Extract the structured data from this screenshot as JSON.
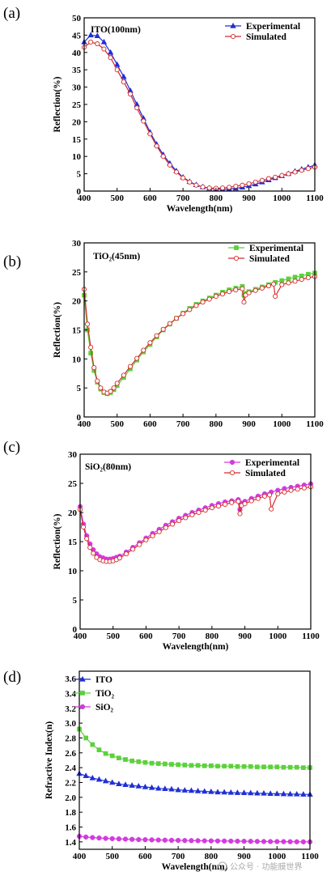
{
  "watermark": "公众号 · 功能膜世界",
  "colors": {
    "ito": "#1f2fd6",
    "tio2": "#5cd13c",
    "sio2": "#d33be0",
    "simulated": "#d62a2a"
  },
  "chart_data": [
    {
      "panel_label": "(a)",
      "type": "line",
      "title": "ITO(100nm)",
      "xlabel": "Wavelength(nm)",
      "ylabel": "Reflection(%)",
      "xlim": [
        400,
        1100
      ],
      "ylim": [
        0,
        50
      ],
      "xticks": [
        400,
        500,
        600,
        700,
        800,
        900,
        1000,
        1100
      ],
      "yticks": [
        0,
        5,
        10,
        15,
        20,
        25,
        30,
        35,
        40,
        45,
        50
      ],
      "legend_position": "top-right",
      "series": [
        {
          "name": "Experimental",
          "marker": "triangle-filled",
          "color": "#1f2fd6",
          "x": [
            400,
            420,
            440,
            460,
            480,
            500,
            520,
            540,
            560,
            580,
            600,
            620,
            640,
            660,
            680,
            700,
            720,
            740,
            760,
            780,
            800,
            820,
            840,
            860,
            880,
            900,
            920,
            940,
            960,
            980,
            1000,
            1020,
            1040,
            1060,
            1080,
            1100
          ],
          "y": [
            43,
            45,
            44.8,
            43,
            40,
            36.5,
            33,
            29,
            25,
            21,
            17,
            13.5,
            10.5,
            8,
            5.8,
            4,
            2.7,
            1.8,
            1.2,
            0.8,
            0.6,
            0.5,
            0.6,
            0.8,
            1.1,
            1.5,
            2.0,
            2.6,
            3.2,
            3.8,
            4.4,
            5.0,
            5.7,
            6.3,
            6.9,
            7.5
          ]
        },
        {
          "name": "Simulated",
          "marker": "circle-open",
          "color": "#d62a2a",
          "x": [
            400,
            420,
            440,
            460,
            480,
            500,
            520,
            540,
            560,
            580,
            600,
            620,
            640,
            660,
            680,
            700,
            720,
            740,
            760,
            780,
            800,
            820,
            840,
            860,
            880,
            900,
            920,
            940,
            960,
            980,
            1000,
            1020,
            1040,
            1060,
            1080,
            1100
          ],
          "y": [
            41.5,
            43,
            42.5,
            41,
            38.5,
            35,
            31.5,
            28,
            24,
            20.2,
            16.5,
            13,
            10,
            7.5,
            5.5,
            3.8,
            2.6,
            1.7,
            1.2,
            0.9,
            0.8,
            0.9,
            1.1,
            1.4,
            1.7,
            2.1,
            2.6,
            3.1,
            3.6,
            4.0,
            4.5,
            5.0,
            5.5,
            6.0,
            6.5,
            6.9
          ]
        }
      ]
    },
    {
      "panel_label": "(b)",
      "type": "line",
      "title": "TiO₂(45nm)",
      "xlabel": "",
      "ylabel": "Reflection(%)",
      "xlim": [
        400,
        1100
      ],
      "ylim": [
        0,
        30
      ],
      "xticks": [
        400,
        500,
        600,
        700,
        800,
        900,
        1000,
        1100
      ],
      "yticks": [
        0,
        5,
        10,
        15,
        20,
        25,
        30
      ],
      "legend_position": "top-right",
      "series": [
        {
          "name": "Experimental",
          "marker": "square-filled",
          "color": "#5cd13c",
          "x": [
            400,
            410,
            420,
            430,
            440,
            450,
            460,
            470,
            480,
            490,
            500,
            520,
            540,
            560,
            580,
            600,
            620,
            640,
            660,
            680,
            700,
            720,
            740,
            760,
            780,
            800,
            820,
            840,
            860,
            880,
            885,
            890,
            900,
            920,
            940,
            960,
            980,
            1000,
            1020,
            1040,
            1060,
            1080,
            1100
          ],
          "y": [
            21,
            15,
            11,
            8,
            6,
            4.8,
            4.2,
            4.0,
            4.2,
            4.7,
            5.4,
            6.8,
            8.3,
            9.8,
            11.2,
            12.5,
            13.8,
            15.0,
            16.0,
            17.0,
            17.9,
            18.7,
            19.4,
            20.0,
            20.5,
            21.0,
            21.5,
            21.9,
            22.2,
            22.5,
            21.0,
            21.3,
            21.6,
            22.0,
            22.4,
            22.8,
            23.2,
            23.5,
            23.8,
            24.1,
            24.3,
            24.6,
            24.8
          ]
        },
        {
          "name": "Simulated",
          "marker": "circle-open",
          "color": "#d62a2a",
          "x": [
            400,
            410,
            420,
            430,
            440,
            450,
            460,
            470,
            480,
            490,
            500,
            520,
            540,
            560,
            580,
            600,
            620,
            640,
            660,
            680,
            700,
            720,
            740,
            760,
            780,
            800,
            820,
            840,
            860,
            880,
            885,
            890,
            900,
            920,
            940,
            960,
            975,
            980,
            1000,
            1020,
            1040,
            1060,
            1080,
            1100
          ],
          "y": [
            22,
            16,
            12,
            8.5,
            6.2,
            5.0,
            4.3,
            4.1,
            4.4,
            5.0,
            5.8,
            7.2,
            8.7,
            10.1,
            11.5,
            12.8,
            14.0,
            15.1,
            16.1,
            17.0,
            17.8,
            18.5,
            19.2,
            19.8,
            20.3,
            20.8,
            21.2,
            21.6,
            21.9,
            22.1,
            19.8,
            21.0,
            21.4,
            21.8,
            22.2,
            22.6,
            22.9,
            20.8,
            22.8,
            23.1,
            23.4,
            23.7,
            24.0,
            24.2
          ]
        }
      ]
    },
    {
      "panel_label": "(c)",
      "type": "line",
      "title": "SiO₂(80nm)",
      "xlabel": "Wavelength(nm)",
      "ylabel": "Reflection(%)",
      "xlim": [
        400,
        1100
      ],
      "ylim": [
        0,
        30
      ],
      "xticks": [
        400,
        500,
        600,
        700,
        800,
        900,
        1000,
        1100
      ],
      "yticks": [
        0,
        5,
        10,
        15,
        20,
        25,
        30
      ],
      "legend_position": "top-right",
      "series": [
        {
          "name": "Experimental",
          "marker": "circle-filled",
          "color": "#d33be0",
          "x": [
            400,
            410,
            420,
            430,
            440,
            450,
            460,
            470,
            480,
            490,
            500,
            510,
            520,
            540,
            560,
            580,
            600,
            620,
            640,
            660,
            680,
            700,
            720,
            740,
            760,
            780,
            800,
            820,
            840,
            860,
            880,
            885,
            890,
            900,
            920,
            940,
            960,
            980,
            1000,
            1020,
            1040,
            1060,
            1080,
            1100
          ],
          "y": [
            21,
            18,
            16,
            14.6,
            13.6,
            12.9,
            12.4,
            12.2,
            12.0,
            12.0,
            12.1,
            12.3,
            12.5,
            13.2,
            14.0,
            14.8,
            15.6,
            16.4,
            17.1,
            17.8,
            18.4,
            19.0,
            19.5,
            20.0,
            20.4,
            20.8,
            21.2,
            21.5,
            21.8,
            22.0,
            22.2,
            20.5,
            21.6,
            21.9,
            22.4,
            22.8,
            23.2,
            23.5,
            23.8,
            24.1,
            24.3,
            24.5,
            24.7,
            24.9
          ]
        },
        {
          "name": "Simulated",
          "marker": "circle-open",
          "color": "#d62a2a",
          "x": [
            400,
            410,
            420,
            430,
            440,
            450,
            460,
            470,
            480,
            490,
            500,
            510,
            520,
            540,
            560,
            580,
            600,
            620,
            640,
            660,
            680,
            700,
            720,
            740,
            760,
            780,
            800,
            820,
            840,
            860,
            880,
            885,
            890,
            900,
            920,
            940,
            960,
            975,
            980,
            1000,
            1020,
            1040,
            1060,
            1080,
            1100
          ],
          "y": [
            20.5,
            17.5,
            15.5,
            14.0,
            13.0,
            12.3,
            11.9,
            11.7,
            11.6,
            11.6,
            11.7,
            11.9,
            12.2,
            12.9,
            13.7,
            14.5,
            15.3,
            16.0,
            16.7,
            17.4,
            18.0,
            18.6,
            19.1,
            19.6,
            20.0,
            20.4,
            20.8,
            21.1,
            21.4,
            21.7,
            21.9,
            19.8,
            21.2,
            21.5,
            22.0,
            22.4,
            22.8,
            23.0,
            20.6,
            23.2,
            23.5,
            23.8,
            24.0,
            24.2,
            24.4
          ]
        }
      ]
    },
    {
      "panel_label": "(d)",
      "type": "line",
      "title": "",
      "xlabel": "Wavelength(nm)",
      "ylabel": "Refractive Index(n)",
      "xlim": [
        400,
        1100
      ],
      "ylim": [
        1.3,
        3.7
      ],
      "xticks": [
        400,
        500,
        600,
        700,
        800,
        900,
        1000,
        1100
      ],
      "yticks": [
        1.4,
        1.6,
        1.8,
        2.0,
        2.2,
        2.4,
        2.6,
        2.8,
        3.0,
        3.2,
        3.4,
        3.6
      ],
      "legend_position": "top-left",
      "series": [
        {
          "name": "ITO",
          "marker": "triangle-filled",
          "color": "#1f2fd6",
          "x": [
            400,
            420,
            440,
            460,
            480,
            500,
            520,
            540,
            560,
            580,
            600,
            620,
            640,
            660,
            680,
            700,
            720,
            740,
            760,
            780,
            800,
            820,
            840,
            860,
            880,
            900,
            920,
            940,
            960,
            980,
            1000,
            1020,
            1040,
            1060,
            1080,
            1100
          ],
          "y": [
            2.32,
            2.29,
            2.26,
            2.24,
            2.22,
            2.2,
            2.18,
            2.17,
            2.16,
            2.15,
            2.14,
            2.13,
            2.12,
            2.115,
            2.11,
            2.1,
            2.095,
            2.09,
            2.085,
            2.08,
            2.075,
            2.07,
            2.068,
            2.065,
            2.062,
            2.06,
            2.058,
            2.055,
            2.053,
            2.05,
            2.048,
            2.046,
            2.044,
            2.042,
            2.04,
            2.04
          ]
        },
        {
          "name": "TiO₂",
          "marker": "square-filled",
          "color": "#5cd13c",
          "x": [
            400,
            420,
            440,
            460,
            480,
            500,
            520,
            540,
            560,
            580,
            600,
            620,
            640,
            660,
            680,
            700,
            720,
            740,
            760,
            780,
            800,
            820,
            840,
            860,
            880,
            900,
            920,
            940,
            960,
            980,
            1000,
            1020,
            1040,
            1060,
            1080,
            1100
          ],
          "y": [
            2.92,
            2.8,
            2.71,
            2.64,
            2.59,
            2.56,
            2.53,
            2.51,
            2.49,
            2.48,
            2.47,
            2.46,
            2.455,
            2.45,
            2.445,
            2.44,
            2.435,
            2.43,
            2.43,
            2.425,
            2.425,
            2.42,
            2.42,
            2.42,
            2.415,
            2.415,
            2.415,
            2.41,
            2.41,
            2.41,
            2.41,
            2.405,
            2.405,
            2.405,
            2.4,
            2.4
          ]
        },
        {
          "name": "SiO₂",
          "marker": "circle-filled",
          "color": "#d33be0",
          "x": [
            400,
            420,
            440,
            460,
            480,
            500,
            520,
            540,
            560,
            580,
            600,
            620,
            640,
            660,
            680,
            700,
            720,
            740,
            760,
            780,
            800,
            820,
            840,
            860,
            880,
            900,
            920,
            940,
            960,
            980,
            1000,
            1020,
            1040,
            1060,
            1080,
            1100
          ],
          "y": [
            1.475,
            1.465,
            1.458,
            1.452,
            1.447,
            1.443,
            1.44,
            1.437,
            1.434,
            1.431,
            1.429,
            1.427,
            1.425,
            1.423,
            1.421,
            1.42,
            1.418,
            1.417,
            1.416,
            1.414,
            1.413,
            1.412,
            1.411,
            1.41,
            1.409,
            1.408,
            1.407,
            1.406,
            1.405,
            1.404,
            1.404,
            1.403,
            1.402,
            1.401,
            1.4,
            1.4
          ]
        }
      ]
    }
  ]
}
